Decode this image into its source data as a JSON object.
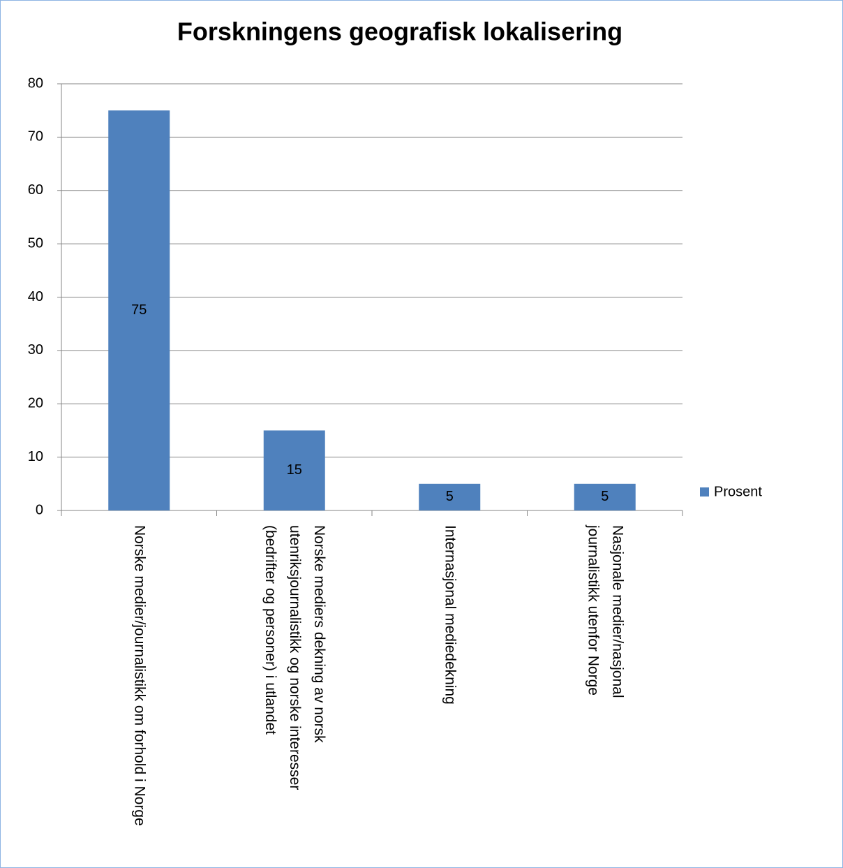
{
  "chart_data": {
    "type": "bar",
    "title": "Forskningens geografisk lokalisering",
    "categories": [
      "Norske medier/journalistikk om forhold i Norge",
      "Norske mediers dekning av norsk utenriksjournalistikk og norske interesser (bedrifter og personer) i utlandet",
      "Internasjonal mediedekning",
      "Nasjonale medier/nasjonal journalistikk utenfor Norge"
    ],
    "series": [
      {
        "name": "Prosent",
        "color": "#4f81bd",
        "values": [
          75,
          15,
          5,
          5
        ]
      }
    ],
    "ylim": [
      0,
      80
    ],
    "yticks": [
      0,
      10,
      20,
      30,
      40,
      50,
      60,
      70,
      80
    ],
    "grid": true,
    "legend": "right",
    "data_labels": true
  }
}
